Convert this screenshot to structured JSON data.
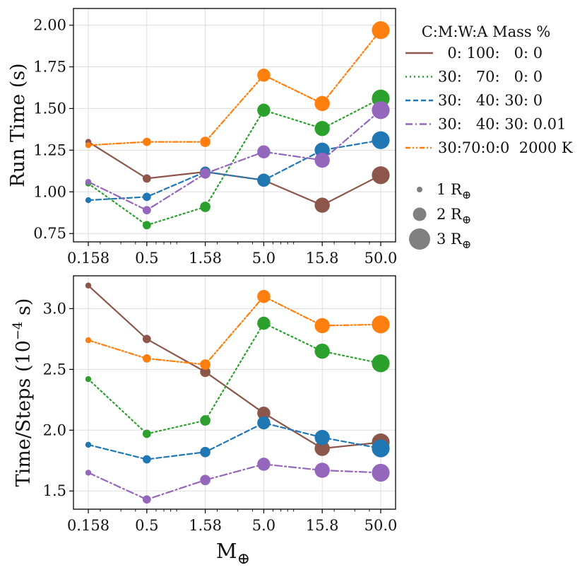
{
  "chart_data": [
    {
      "type": "line",
      "panel": "top",
      "ylabel": "Run Time (s)",
      "xlabel": "",
      "x": [
        0.158,
        0.5,
        1.58,
        5.0,
        15.8,
        50.0
      ],
      "x_tick_labels": [
        "0.158",
        "0.5",
        "1.58",
        "5.0",
        "15.8",
        "50.0"
      ],
      "xscale": "log",
      "ylim": [
        0.7,
        2.1
      ],
      "y_ticks": [
        0.75,
        1.0,
        1.25,
        1.5,
        1.75,
        2.0
      ],
      "y_tick_labels": [
        "0.75",
        "1.00",
        "1.25",
        "1.50",
        "1.75",
        "2.00"
      ],
      "grid": true,
      "series": [
        {
          "name": "  0: 100:   0: 0",
          "color": "#8c564b",
          "dash": "solid",
          "values": [
            1.3,
            1.08,
            1.12,
            1.07,
            0.92,
            1.1
          ]
        },
        {
          "name": "30:   70:   0: 0",
          "color": "#2ca02c",
          "dash": "dotted",
          "values": [
            1.05,
            0.8,
            0.91,
            1.49,
            1.38,
            1.56
          ]
        },
        {
          "name": "30:   40: 30: 0",
          "color": "#1f77b4",
          "dash": "dashed",
          "values": [
            0.95,
            0.97,
            1.12,
            1.07,
            1.25,
            1.31
          ]
        },
        {
          "name": "30:   40: 30: 0.01",
          "color": "#9467bd",
          "dash": "dashdot",
          "values": [
            1.06,
            0.89,
            1.11,
            1.24,
            1.19,
            1.49
          ]
        },
        {
          "name": "30:70:0:0  2000 K",
          "color": "#ff7f0e",
          "dash": "dashdotdot",
          "values": [
            1.28,
            1.3,
            1.3,
            1.7,
            1.53,
            1.97
          ]
        }
      ]
    },
    {
      "type": "line",
      "panel": "bottom",
      "ylabel": "Time/Steps (10",
      "ylabel_exp": "−4",
      "ylabel_tail": " s)",
      "xlabel": "M",
      "xlabel_sub": "⊕",
      "x": [
        0.158,
        0.5,
        1.58,
        5.0,
        15.8,
        50.0
      ],
      "x_tick_labels": [
        "0.158",
        "0.5",
        "1.58",
        "5.0",
        "15.8",
        "50.0"
      ],
      "xscale": "log",
      "ylim": [
        1.35,
        3.27
      ],
      "y_ticks": [
        1.5,
        2.0,
        2.5,
        3.0
      ],
      "y_tick_labels": [
        "1.5",
        "2.0",
        "2.5",
        "3.0"
      ],
      "grid": true,
      "series": [
        {
          "name": "  0: 100:   0: 0",
          "color": "#8c564b",
          "dash": "solid",
          "values": [
            3.19,
            2.75,
            2.48,
            2.14,
            1.85,
            1.9
          ]
        },
        {
          "name": "30:   70:   0: 0",
          "color": "#2ca02c",
          "dash": "dotted",
          "values": [
            2.42,
            1.97,
            2.08,
            2.88,
            2.65,
            2.55
          ]
        },
        {
          "name": "30:   40: 30: 0",
          "color": "#1f77b4",
          "dash": "dashed",
          "values": [
            1.88,
            1.76,
            1.82,
            2.06,
            1.94,
            1.85
          ]
        },
        {
          "name": "30:   40: 30: 0.01",
          "color": "#9467bd",
          "dash": "dashdot",
          "values": [
            1.65,
            1.43,
            1.59,
            1.72,
            1.67,
            1.65
          ]
        },
        {
          "name": "30:70:0:0  2000 K",
          "color": "#ff7f0e",
          "dash": "dashdotdot",
          "values": [
            2.74,
            2.59,
            2.54,
            3.1,
            2.86,
            2.87
          ]
        }
      ]
    }
  ],
  "marker_size_by_x_index": [
    1,
    1.4,
    1.75,
    2.2,
    2.55,
    3.0
  ],
  "legend": {
    "title": "C:M:W:A Mass %",
    "placement": "right",
    "series_labels": [
      "  0: 100:   0: 0",
      "30:   70:   0: 0",
      "30:   40: 30: 0",
      "30:   40: 30: 0.01",
      "30:70:0:0  2000 K"
    ],
    "series_colors": [
      "#8c564b",
      "#2ca02c",
      "#1f77b4",
      "#9467bd",
      "#ff7f0e"
    ],
    "series_dashes": [
      "solid",
      "dotted",
      "dashed",
      "dashdot",
      "dashdotdot"
    ],
    "size_items": [
      {
        "label": "1 R",
        "sub": "⊕",
        "radius_earth": 1
      },
      {
        "label": "2 R",
        "sub": "⊕",
        "radius_earth": 2
      },
      {
        "label": "3 R",
        "sub": "⊕",
        "radius_earth": 3
      }
    ],
    "size_marker_color": "#808080"
  }
}
